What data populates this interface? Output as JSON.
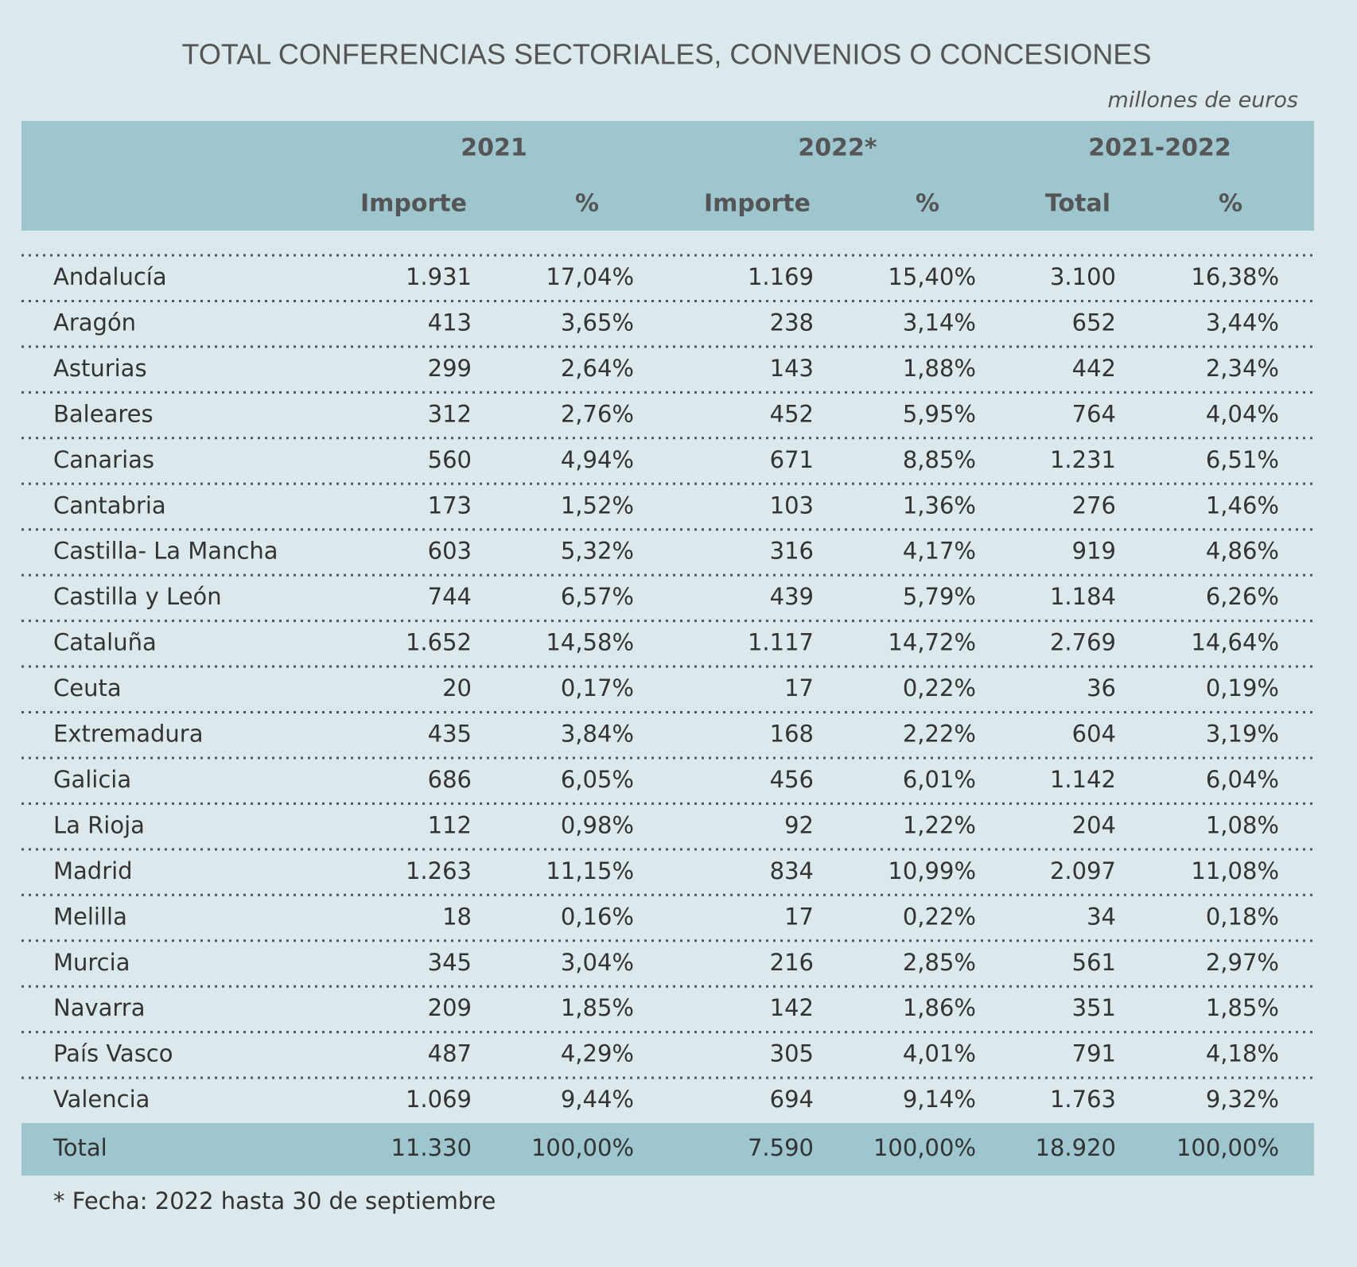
{
  "title": "TOTAL CONFERENCIAS SECTORIALES, CONVENIOS O CONCESIONES",
  "unit": "millones de euros",
  "header": {
    "groups": [
      "2021",
      "2022*",
      "2021-2022"
    ],
    "columns": [
      "Importe",
      "%",
      "Importe",
      "%",
      "Total",
      "%"
    ]
  },
  "rows": [
    [
      "Andalucía",
      "1.931",
      "17,04%",
      "1.169",
      "15,40%",
      "3.100",
      "16,38%"
    ],
    [
      "Aragón",
      "413",
      "3,65%",
      "238",
      "3,14%",
      "652",
      "3,44%"
    ],
    [
      "Asturias",
      "299",
      "2,64%",
      "143",
      "1,88%",
      "442",
      "2,34%"
    ],
    [
      "Baleares",
      "312",
      "2,76%",
      "452",
      "5,95%",
      "764",
      "4,04%"
    ],
    [
      "Canarias",
      "560",
      "4,94%",
      "671",
      "8,85%",
      "1.231",
      "6,51%"
    ],
    [
      "Cantabria",
      "173",
      "1,52%",
      "103",
      "1,36%",
      "276",
      "1,46%"
    ],
    [
      "Castilla- La Mancha",
      "603",
      "5,32%",
      "316",
      "4,17%",
      "919",
      "4,86%"
    ],
    [
      "Castilla y León",
      "744",
      "6,57%",
      "439",
      "5,79%",
      "1.184",
      "6,26%"
    ],
    [
      "Cataluña",
      "1.652",
      "14,58%",
      "1.117",
      "14,72%",
      "2.769",
      "14,64%"
    ],
    [
      "Ceuta",
      "20",
      "0,17%",
      "17",
      "0,22%",
      "36",
      "0,19%"
    ],
    [
      "Extremadura",
      "435",
      "3,84%",
      "168",
      "2,22%",
      "604",
      "3,19%"
    ],
    [
      "Galicia",
      "686",
      "6,05%",
      "456",
      "6,01%",
      "1.142",
      "6,04%"
    ],
    [
      "La Rioja",
      "112",
      "0,98%",
      "92",
      "1,22%",
      "204",
      "1,08%"
    ],
    [
      "Madrid",
      "1.263",
      "11,15%",
      "834",
      "10,99%",
      "2.097",
      "11,08%"
    ],
    [
      "Melilla",
      "18",
      "0,16%",
      "17",
      "0,22%",
      "34",
      "0,18%"
    ],
    [
      "Murcia",
      "345",
      "3,04%",
      "216",
      "2,85%",
      "561",
      "2,97%"
    ],
    [
      "Navarra",
      "209",
      "1,85%",
      "142",
      "1,86%",
      "351",
      "1,85%"
    ],
    [
      "País Vasco",
      "487",
      "4,29%",
      "305",
      "4,01%",
      "791",
      "4,18%"
    ],
    [
      "Valencia",
      "1.069",
      "9,44%",
      "694",
      "9,14%",
      "1.763",
      "9,32%"
    ]
  ],
  "total": [
    "Total",
    "11.330",
    "100,00%",
    "7.590",
    "100,00%",
    "18.920",
    "100,00%"
  ],
  "footnote": "* Fecha: 2022 hasta 30 de septiembre"
}
